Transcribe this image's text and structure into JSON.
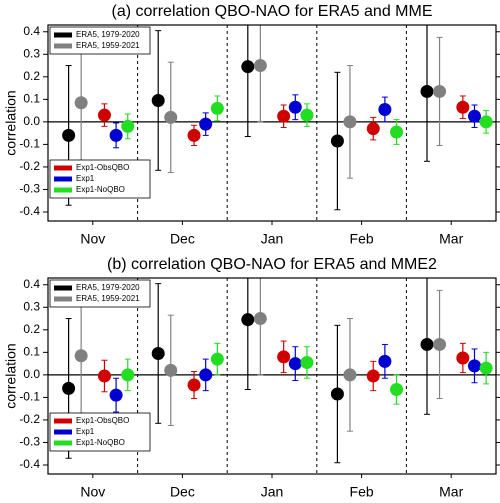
{
  "chart_data": [
    {
      "type": "errorbar",
      "title": "(a) correlation QBO-NAO for ERA5 and MME",
      "ylabel": "correlation",
      "categories": [
        "Nov",
        "Dec",
        "Jan",
        "Feb",
        "Mar"
      ],
      "ylim": [
        -0.44,
        0.43
      ],
      "yticks": [
        -0.4,
        -0.3,
        -0.2,
        -0.1,
        {
          "value": 0,
          "label": "0.0"
        },
        0.1,
        0.2,
        0.3,
        0.4
      ],
      "series": [
        {
          "name": "ERA5, 1979-2020",
          "color": "#000000",
          "legend": "upper left",
          "values": [
            -0.06,
            0.095,
            0.245,
            -0.085,
            0.135
          ],
          "errors": [
            0.31,
            0.31,
            0.31,
            0.305,
            0.31
          ]
        },
        {
          "name": "ERA5, 1959-2021",
          "color": "#808080",
          "legend": "upper left",
          "values": [
            0.085,
            0.02,
            0.25,
            0.0,
            0.135
          ],
          "errors": [
            0.255,
            0.245,
            0.25,
            0.25,
            0.24
          ]
        },
        {
          "name": "Exp1-ObsQBO",
          "color": "#d00000",
          "legend": "lower left",
          "values": [
            0.03,
            -0.06,
            0.025,
            -0.03,
            0.065
          ],
          "errors": [
            0.05,
            0.045,
            0.05,
            0.05,
            0.05
          ]
        },
        {
          "name": "Exp1",
          "color": "#0000d0",
          "legend": "lower left",
          "values": [
            -0.06,
            -0.01,
            0.065,
            0.055,
            0.025
          ],
          "errors": [
            0.055,
            0.05,
            0.055,
            0.055,
            0.05
          ]
        },
        {
          "name": "Exp1-NoQBO",
          "color": "#22dd22",
          "legend": "lower left",
          "values": [
            -0.02,
            0.06,
            0.03,
            -0.045,
            0.0
          ],
          "errors": [
            0.055,
            0.055,
            0.05,
            0.055,
            0.05
          ]
        }
      ]
    },
    {
      "type": "errorbar",
      "title": "(b) correlation QBO-NAO for ERA5 and MME2",
      "ylabel": "correlation",
      "categories": [
        "Nov",
        "Dec",
        "Jan",
        "Feb",
        "Mar"
      ],
      "ylim": [
        -0.44,
        0.43
      ],
      "yticks": [
        -0.4,
        -0.3,
        -0.2,
        -0.1,
        {
          "value": 0,
          "label": "0.0"
        },
        0.1,
        0.2,
        0.3,
        0.4
      ],
      "series": [
        {
          "name": "ERA5, 1979-2020",
          "color": "#000000",
          "legend": "upper left",
          "values": [
            -0.06,
            0.095,
            0.245,
            -0.085,
            0.135
          ],
          "errors": [
            0.31,
            0.31,
            0.31,
            0.305,
            0.31
          ]
        },
        {
          "name": "ERA5, 1959-2021",
          "color": "#808080",
          "legend": "upper left",
          "values": [
            0.085,
            0.02,
            0.25,
            0.0,
            0.135
          ],
          "errors": [
            0.255,
            0.245,
            0.25,
            0.25,
            0.24
          ]
        },
        {
          "name": "Exp1-ObsQBO",
          "color": "#d00000",
          "legend": "lower left",
          "values": [
            -0.005,
            -0.045,
            0.08,
            -0.005,
            0.075
          ],
          "errors": [
            0.07,
            0.06,
            0.07,
            0.065,
            0.065
          ]
        },
        {
          "name": "Exp1",
          "color": "#0000d0",
          "legend": "lower left",
          "values": [
            -0.09,
            0.0,
            0.05,
            0.06,
            0.04
          ],
          "errors": [
            0.075,
            0.07,
            0.075,
            0.075,
            0.075
          ]
        },
        {
          "name": "Exp1-NoQBO",
          "color": "#22dd22",
          "legend": "lower left",
          "values": [
            0.0,
            0.07,
            0.055,
            -0.065,
            0.03
          ],
          "errors": [
            0.07,
            0.07,
            0.07,
            0.065,
            0.07
          ]
        }
      ]
    }
  ]
}
